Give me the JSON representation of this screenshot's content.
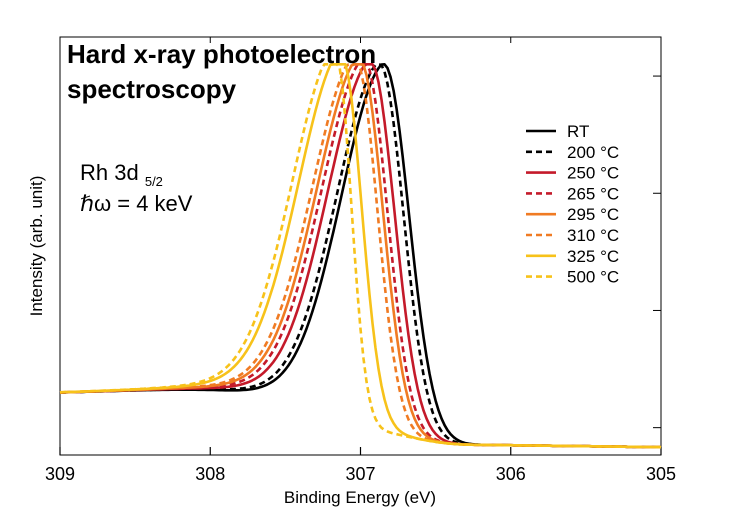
{
  "chart_data": {
    "type": "line",
    "title_lines": [
      "Hard x-ray photoelectron",
      "spectroscopy"
    ],
    "annotation": {
      "line1_main": "Rh 3d",
      "line1_sub": "5/2",
      "line2": "ℏω = 4 keV"
    },
    "xlabel": "Binding Energy (eV)",
    "ylabel": "Intensity (arb. unit)",
    "xlim": [
      309,
      305
    ],
    "x_reversed": true,
    "xticks": [
      309,
      308,
      307,
      306,
      305
    ],
    "ylim": [
      0,
      1.07
    ],
    "y_ticks_unlabeled": [
      0.07,
      0.37,
      0.67,
      0.97
    ],
    "legend_position": "top-right",
    "grid": false,
    "series": [
      {
        "name": "RT",
        "color": "#000000",
        "dash": "solid",
        "peak": 306.84,
        "x_shift": 0.0,
        "width_high": 0.23
      },
      {
        "name": "200 °C",
        "color": "#000000",
        "dash": "dashed",
        "peak": 306.87,
        "x_shift": -0.02,
        "width_high": 0.22
      },
      {
        "name": "250 °C",
        "color": "#c41a2a",
        "dash": "solid",
        "peak": 306.93,
        "x_shift": -0.06,
        "width_high": 0.22
      },
      {
        "name": "265 °C",
        "color": "#c41a2a",
        "dash": "dashed",
        "peak": 306.97,
        "x_shift": -0.08,
        "width_high": 0.21
      },
      {
        "name": "295 °C",
        "color": "#f07b23",
        "dash": "solid",
        "peak": 307.0,
        "x_shift": -0.11,
        "width_high": 0.21
      },
      {
        "name": "310 °C",
        "color": "#f07b23",
        "dash": "dashed",
        "peak": 307.03,
        "x_shift": -0.12,
        "width_high": 0.2
      },
      {
        "name": "325 °C",
        "color": "#f7c21a",
        "dash": "solid",
        "peak": 307.12,
        "x_shift": -0.17,
        "width_high": 0.18
      },
      {
        "name": "500 °C",
        "color": "#f7c21a",
        "dash": "dashed",
        "peak": 307.16,
        "x_shift": -0.2,
        "width_high": 0.14
      }
    ]
  }
}
